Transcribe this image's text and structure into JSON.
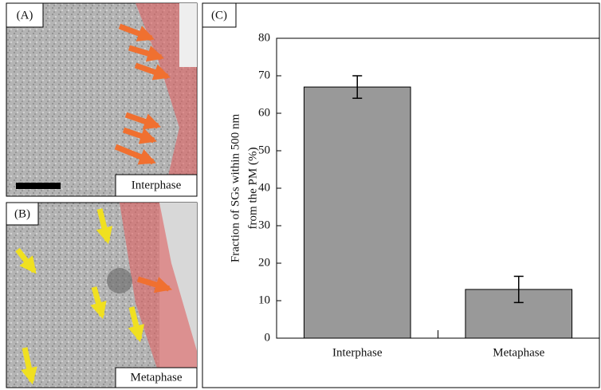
{
  "panels": {
    "a": {
      "label": "(A)",
      "caption": "Interphase"
    },
    "b": {
      "label": "(B)",
      "caption": "Metaphase"
    },
    "c": {
      "label": "(C)"
    }
  },
  "chart_data": {
    "type": "bar",
    "ylabel": [
      "Fraction of SGs within 500 nm",
      "from the PM (%)"
    ],
    "categories": [
      "Interphase",
      "Metaphase"
    ],
    "values": [
      67,
      13
    ],
    "errors": [
      3,
      3.5
    ],
    "color": "#999999",
    "ylim": [
      0,
      80
    ],
    "yticks": [
      0,
      10,
      20,
      30,
      40,
      50,
      60,
      70,
      80
    ]
  }
}
